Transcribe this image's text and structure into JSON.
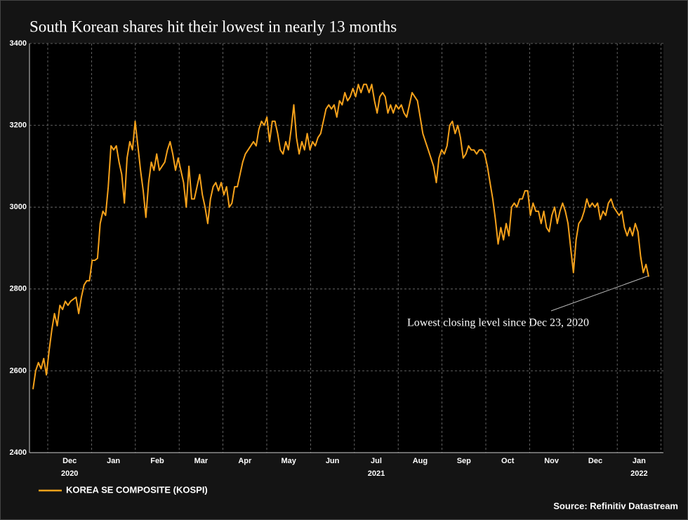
{
  "chart_data": {
    "type": "line",
    "title": "South Korean shares hit their lowest in nearly 13 months",
    "months": [
      "Dec",
      "Jan",
      "Feb",
      "Mar",
      "Apr",
      "May",
      "Jun",
      "Jul",
      "Aug",
      "Sep",
      "Oct",
      "Nov",
      "Dec",
      "Jan"
    ],
    "years": [
      "2020",
      null,
      null,
      null,
      null,
      null,
      null,
      "2021",
      null,
      null,
      null,
      null,
      null,
      "2022"
    ],
    "ylim": [
      2400,
      3400
    ],
    "yticks": [
      2400,
      2600,
      2800,
      3000,
      3200,
      3400
    ],
    "grid": true,
    "annotation": "Lowest closing level since Dec 23, 2020",
    "source": "Source: Refinitiv Datastream",
    "series": [
      {
        "name": "KOREA SE COMPOSITE (KOSPI)",
        "color": "#f7a21b",
        "values": [
          2555,
          2600,
          2620,
          2605,
          2630,
          2590,
          2650,
          2700,
          2740,
          2710,
          2760,
          2750,
          2770,
          2760,
          2770,
          2775,
          2780,
          2740,
          2780,
          2810,
          2820,
          2820,
          2870,
          2870,
          2875,
          2960,
          2990,
          2980,
          3050,
          3150,
          3140,
          3150,
          3110,
          3080,
          3010,
          3120,
          3160,
          3140,
          3210,
          3150,
          3090,
          3040,
          2975,
          3060,
          3110,
          3090,
          3130,
          3090,
          3100,
          3110,
          3140,
          3160,
          3130,
          3090,
          3120,
          3090,
          3060,
          3000,
          3100,
          3020,
          3020,
          3050,
          3080,
          3030,
          3000,
          2960,
          3020,
          3050,
          3060,
          3040,
          3060,
          3030,
          3050,
          3000,
          3010,
          3050,
          3050,
          3080,
          3110,
          3130,
          3140,
          3150,
          3160,
          3150,
          3190,
          3210,
          3200,
          3220,
          3160,
          3210,
          3210,
          3180,
          3140,
          3130,
          3160,
          3140,
          3190,
          3250,
          3170,
          3130,
          3160,
          3140,
          3180,
          3140,
          3160,
          3150,
          3170,
          3180,
          3210,
          3240,
          3250,
          3240,
          3250,
          3220,
          3260,
          3250,
          3280,
          3260,
          3270,
          3290,
          3270,
          3300,
          3280,
          3300,
          3300,
          3280,
          3300,
          3260,
          3230,
          3270,
          3280,
          3270,
          3230,
          3250,
          3230,
          3250,
          3240,
          3250,
          3230,
          3220,
          3250,
          3280,
          3270,
          3260,
          3220,
          3180,
          3160,
          3140,
          3120,
          3100,
          3060,
          3120,
          3140,
          3130,
          3150,
          3200,
          3210,
          3180,
          3200,
          3170,
          3120,
          3130,
          3150,
          3140,
          3140,
          3130,
          3140,
          3140,
          3130,
          3100,
          3060,
          3020,
          2970,
          2910,
          2950,
          2920,
          2960,
          2930,
          3000,
          3010,
          3000,
          3020,
          3020,
          3040,
          3040,
          2980,
          3010,
          2990,
          2990,
          2960,
          2990,
          2950,
          2940,
          2980,
          3000,
          2960,
          2990,
          3010,
          2990,
          2960,
          2900,
          2840,
          2920,
          2960,
          2970,
          2990,
          3020,
          3000,
          3010,
          3000,
          3010,
          2970,
          2990,
          2980,
          3010,
          3020,
          3000,
          2990,
          2980,
          2990,
          2950,
          2930,
          2950,
          2930,
          2960,
          2940,
          2880,
          2840,
          2860,
          2830
        ]
      }
    ]
  }
}
